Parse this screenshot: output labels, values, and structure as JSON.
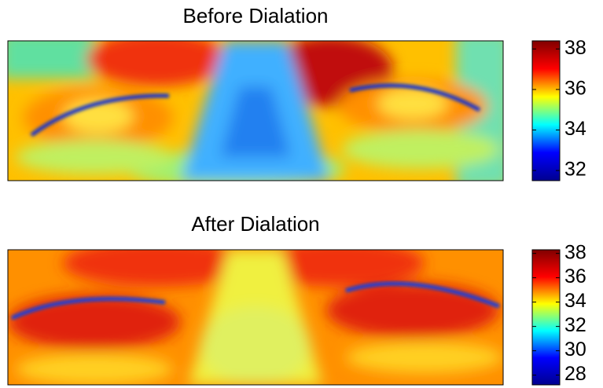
{
  "chart_data": [
    {
      "type": "thermal-image",
      "title": "Before Dialation",
      "colormap": "jet",
      "ylim": [
        31.5,
        38.4
      ],
      "yticks": [
        32,
        34,
        36,
        38
      ]
    },
    {
      "type": "thermal-image",
      "title": "After Dialation",
      "colormap": "jet",
      "ylim": [
        27.2,
        38.3
      ],
      "yticks": [
        28,
        30,
        32,
        34,
        36,
        38
      ]
    }
  ]
}
